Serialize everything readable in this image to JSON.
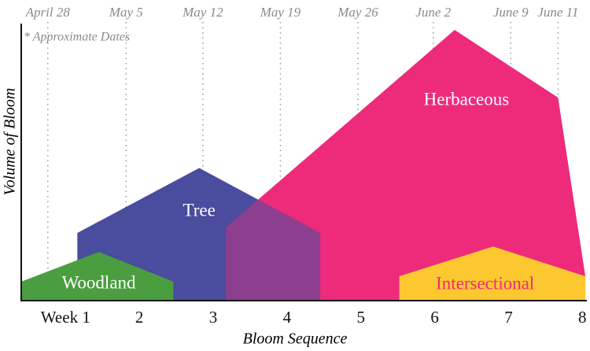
{
  "chart_data": {
    "type": "area",
    "y_label": "Volume of Bloom",
    "x_label": "Bloom Sequence",
    "note": "* Approximate Dates",
    "xlim": [
      0.4,
      8.05
    ],
    "ylim": [
      0,
      100
    ],
    "xticks": [
      {
        "value": 1,
        "label": "Week 1"
      },
      2,
      3,
      4,
      5,
      6,
      7,
      8
    ],
    "x2ticks": [
      {
        "value": 0.76,
        "label": "April 28"
      },
      {
        "value": 1.82,
        "label": "May 5"
      },
      {
        "value": 2.86,
        "label": "May 12"
      },
      {
        "value": 3.91,
        "label": "May 19"
      },
      {
        "value": 4.96,
        "label": "May 26"
      },
      {
        "value": 5.98,
        "label": "June 2"
      },
      {
        "value": 7.03,
        "label": "June 9"
      },
      {
        "value": 7.67,
        "label": "June 11"
      }
    ],
    "series": [
      {
        "name": "Tree",
        "color": "#4a4c9e",
        "label_color": "#ffffff",
        "x": [
          1.16,
          1.16,
          2.81,
          4.45,
          4.45
        ],
        "values": [
          0,
          25,
          49,
          25,
          0
        ]
      },
      {
        "name": "Herbaceous",
        "color": "#ee2a7b",
        "label_color": "#ffffff",
        "x": [
          3.17,
          3.17,
          6.27,
          7.67,
          8.04,
          8.04
        ],
        "values": [
          0,
          27,
          100,
          75,
          9,
          0
        ]
      },
      {
        "name": "Woodland",
        "color": "#4a9e3f",
        "label_color": "#ffffff",
        "x": [
          0.4,
          0.4,
          1.45,
          2.46,
          2.46
        ],
        "values": [
          0,
          7,
          18,
          7,
          0
        ]
      },
      {
        "name": "Intersectional",
        "color": "#fdc82f",
        "label_color": "#ee2a7b",
        "x": [
          5.52,
          5.52,
          6.79,
          8.04,
          8.04
        ],
        "values": [
          0,
          9,
          20,
          9,
          0
        ]
      }
    ],
    "overlap_color": "#8b3f8e"
  }
}
